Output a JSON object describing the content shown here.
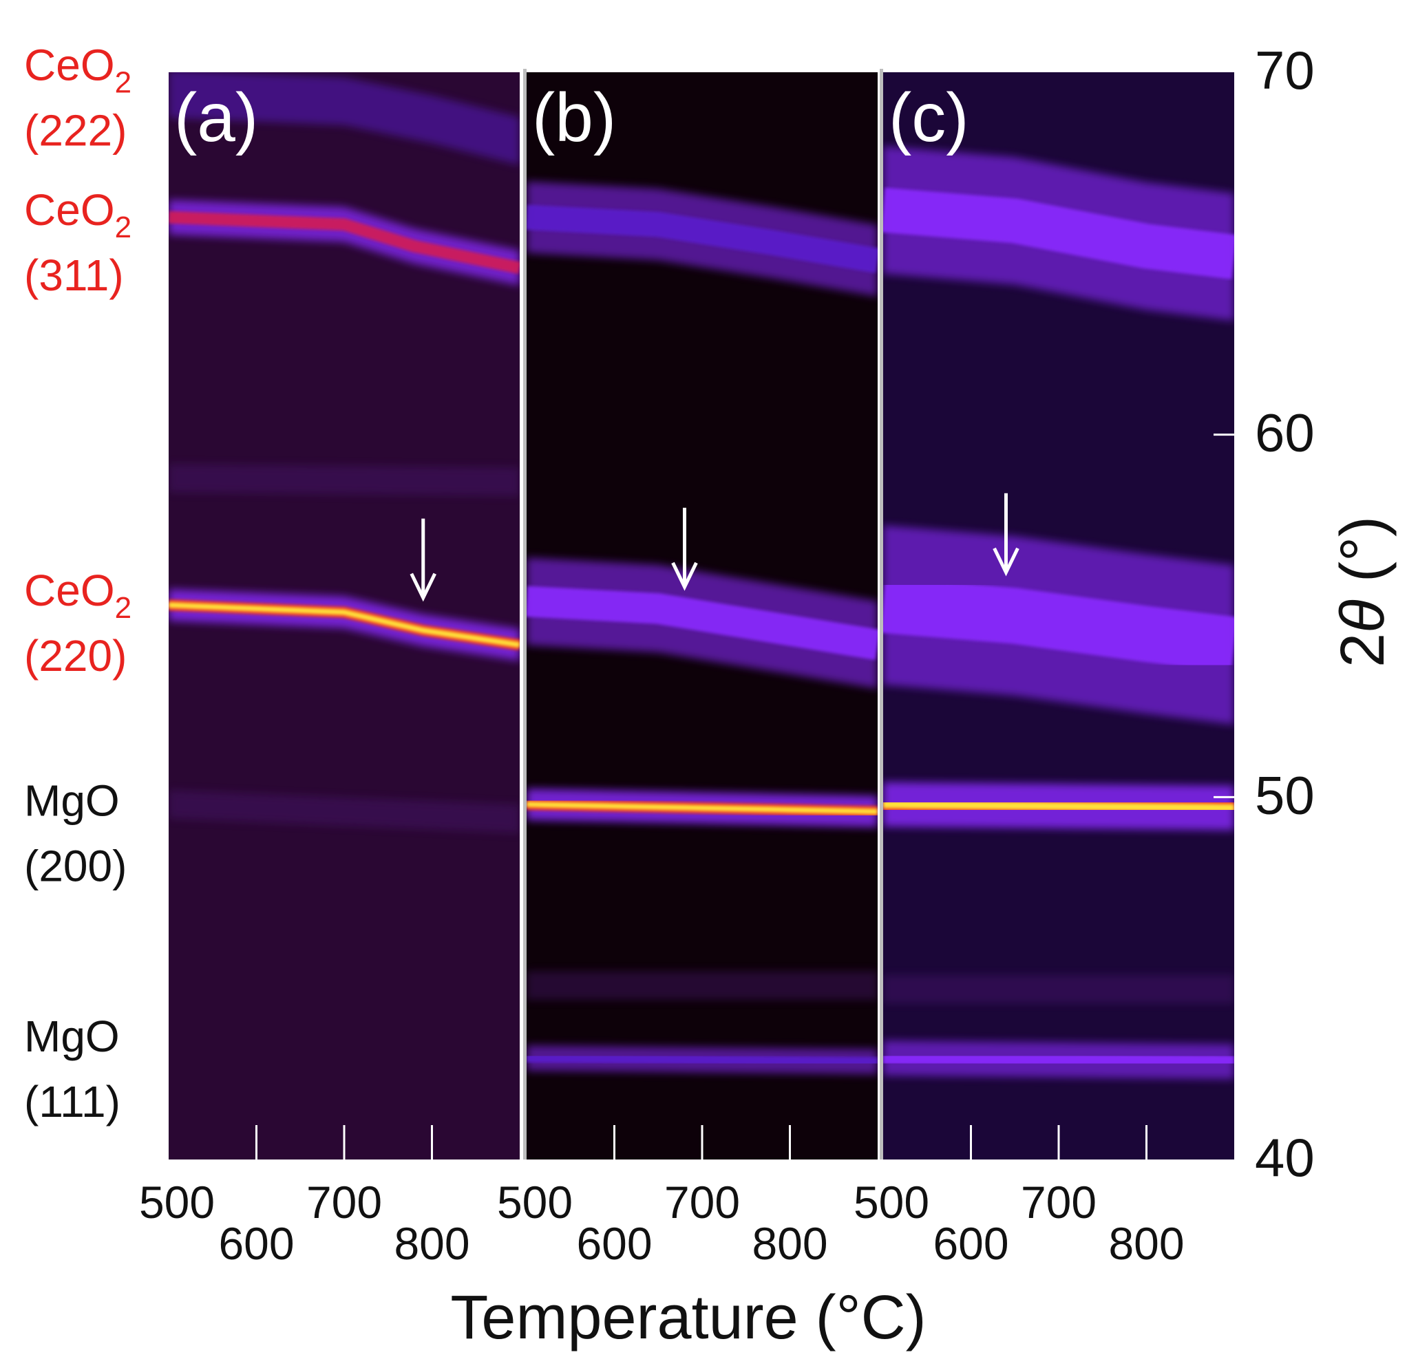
{
  "chart_data": {
    "type": "heatmap",
    "title": "",
    "xlabel": "Temperature (°C)",
    "ylabel": "2θ (°)",
    "ylabel_parts": {
      "prefix": "2",
      "theta": "θ",
      "suffix": " (°)"
    },
    "xlim": [
      500,
      900
    ],
    "ylim": [
      40,
      70
    ],
    "x_ticks": [
      500,
      600,
      700,
      800
    ],
    "x_tick_labels": [
      "500",
      "600",
      "700",
      "800"
    ],
    "y_ticks": [
      40,
      50,
      60,
      70
    ],
    "y_tick_labels": [
      "40",
      "50",
      "60",
      "70"
    ],
    "peak_labels": [
      {
        "line1": "CeO",
        "sub": "2",
        "line2": "(222)",
        "color": "#e8231f",
        "two_theta": 69.5
      },
      {
        "line1": "CeO",
        "sub": "2",
        "line2": "(311)",
        "color": "#e8231f",
        "two_theta": 65.5
      },
      {
        "line1": "CeO",
        "sub": "2",
        "line2": "(220)",
        "color": "#e8231f",
        "two_theta": 55.0
      },
      {
        "line1": "MgO",
        "sub": "",
        "line2": "(200)",
        "color": "#111111",
        "two_theta": 49.2
      },
      {
        "line1": "MgO",
        "sub": "",
        "line2": "(111)",
        "color": "#111111",
        "two_theta": 42.7
      }
    ],
    "panels": [
      {
        "label": "(a)",
        "background": "#2a0733",
        "arrow_temperature": 790,
        "arrow_two_theta": 55.5,
        "bands": [
          {
            "name": "CeO2 (222)",
            "points": [
              [
                500,
                69.4
              ],
              [
                700,
                69.2
              ],
              [
                800,
                68.7
              ],
              [
                900,
                68.1
              ]
            ],
            "width": 0.3,
            "intensity": 0.35
          },
          {
            "name": "CeO2 (311)",
            "points": [
              [
                500,
                66.0
              ],
              [
                700,
                65.8
              ],
              [
                780,
                65.2
              ],
              [
                900,
                64.6
              ]
            ],
            "width": 0.22,
            "intensity": 0.85
          },
          {
            "name": "weak 58.8",
            "points": [
              [
                500,
                58.8
              ],
              [
                900,
                58.7
              ]
            ],
            "width": 0.18,
            "intensity": 0.15
          },
          {
            "name": "CeO2 (220)",
            "points": [
              [
                500,
                55.3
              ],
              [
                700,
                55.1
              ],
              [
                790,
                54.6
              ],
              [
                900,
                54.2
              ]
            ],
            "width": 0.2,
            "intensity": 0.95
          },
          {
            "name": "MgO (200)",
            "points": [
              [
                500,
                49.8
              ],
              [
                900,
                49.4
              ]
            ],
            "width": 0.18,
            "intensity": 0.15
          }
        ]
      },
      {
        "label": "(b)",
        "background": "#0d0109",
        "arrow_temperature": 680,
        "arrow_two_theta": 55.8,
        "bands": [
          {
            "name": "CeO2 (311)",
            "points": [
              [
                500,
                66.0
              ],
              [
                650,
                65.8
              ],
              [
                780,
                65.3
              ],
              [
                900,
                64.8
              ]
            ],
            "width": 0.45,
            "intensity": 0.45
          },
          {
            "name": "CeO2 (220)",
            "points": [
              [
                500,
                55.4
              ],
              [
                650,
                55.2
              ],
              [
                800,
                54.6
              ],
              [
                900,
                54.2
              ]
            ],
            "width": 0.55,
            "intensity": 0.5
          },
          {
            "name": "MgO (200)",
            "points": [
              [
                500,
                49.8
              ],
              [
                900,
                49.6
              ]
            ],
            "width": 0.2,
            "intensity": 1.0
          },
          {
            "name": "weak 44.8",
            "points": [
              [
                500,
                44.8
              ],
              [
                900,
                44.8
              ]
            ],
            "width": 0.18,
            "intensity": 0.12
          },
          {
            "name": "MgO (111)",
            "points": [
              [
                500,
                42.8
              ],
              [
                900,
                42.7
              ]
            ],
            "width": 0.16,
            "intensity": 0.45
          }
        ]
      },
      {
        "label": "(c)",
        "background": "#1b0638",
        "arrow_temperature": 640,
        "arrow_two_theta": 56.2,
        "bands": [
          {
            "name": "CeO2 (311)",
            "points": [
              [
                500,
                66.2
              ],
              [
                650,
                65.9
              ],
              [
                800,
                65.2
              ],
              [
                900,
                64.9
              ]
            ],
            "width": 0.8,
            "intensity": 0.55
          },
          {
            "name": "CeO2 (220)",
            "points": [
              [
                500,
                55.3
              ],
              [
                650,
                55.0
              ],
              [
                800,
                54.5
              ],
              [
                900,
                54.2
              ]
            ],
            "width": 1.0,
            "intensity": 0.55
          },
          {
            "name": "MgO (200)",
            "points": [
              [
                500,
                49.8
              ],
              [
                900,
                49.7
              ]
            ],
            "width": 0.28,
            "intensity": 1.0
          },
          {
            "name": "weak 44.7",
            "points": [
              [
                500,
                44.7
              ],
              [
                900,
                44.7
              ]
            ],
            "width": 0.18,
            "intensity": 0.15
          },
          {
            "name": "MgO (111)",
            "points": [
              [
                500,
                42.8
              ],
              [
                900,
                42.7
              ]
            ],
            "width": 0.22,
            "intensity": 0.55
          }
        ]
      }
    ]
  }
}
